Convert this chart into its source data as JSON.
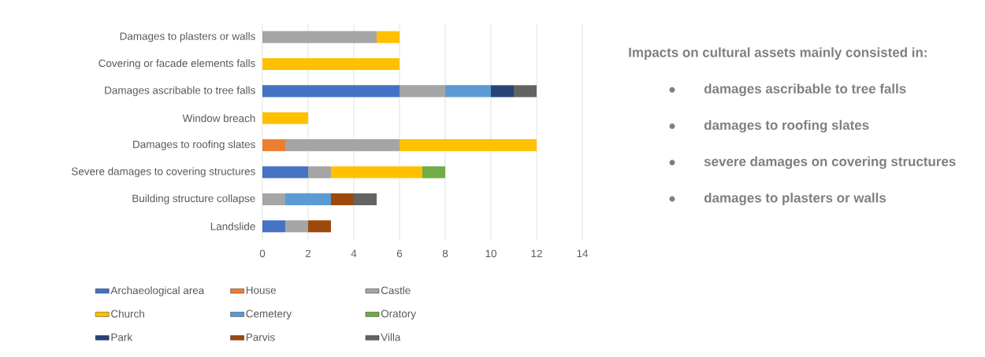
{
  "chart_data": {
    "type": "bar",
    "orientation": "horizontal",
    "stacked": true,
    "categories": [
      "Damages to plasters or walls",
      "Covering or facade elements falls",
      "Damages ascribable to tree falls",
      "Window breach",
      "Damages to roofing slates",
      "Severe damages to covering structures",
      "Building structure collapse",
      "Landslide"
    ],
    "series": [
      {
        "name": "Archaeological area",
        "color": "#4472c4",
        "values": [
          null,
          null,
          6,
          null,
          null,
          2,
          null,
          1
        ]
      },
      {
        "name": "House",
        "color": "#ed7d31",
        "values": [
          null,
          null,
          null,
          null,
          1,
          null,
          null,
          null
        ]
      },
      {
        "name": "Castle",
        "color": "#a5a5a5",
        "values": [
          5,
          null,
          2,
          null,
          5,
          1,
          1,
          1
        ]
      },
      {
        "name": "Church",
        "color": "#ffc000",
        "values": [
          1,
          6,
          null,
          2,
          6,
          4,
          null,
          null
        ]
      },
      {
        "name": "Cemetery",
        "color": "#5b9bd5",
        "values": [
          null,
          null,
          2,
          null,
          null,
          null,
          2,
          null
        ]
      },
      {
        "name": "Oratory",
        "color": "#70ad47",
        "values": [
          null,
          null,
          null,
          null,
          null,
          1,
          null,
          null
        ]
      },
      {
        "name": "Park",
        "color": "#264478",
        "values": [
          null,
          null,
          1,
          null,
          null,
          null,
          null,
          null
        ]
      },
      {
        "name": "Parvis",
        "color": "#9e480e",
        "values": [
          null,
          null,
          null,
          null,
          null,
          null,
          1,
          1
        ]
      },
      {
        "name": "Villa",
        "color": "#636363",
        "values": [
          null,
          null,
          1,
          null,
          null,
          null,
          1,
          null
        ]
      }
    ],
    "xlim": [
      0,
      14
    ],
    "xticks": [
      0,
      2,
      4,
      6,
      8,
      10,
      12,
      14
    ],
    "grid": "x",
    "legend": "bottom",
    "annotations": [
      "Impacts on cultural assets mainly consisted in:",
      "damages ascribable to tree falls",
      "damages to roofing slates",
      "severe damages on covering structures",
      "damages to plasters or walls"
    ]
  }
}
